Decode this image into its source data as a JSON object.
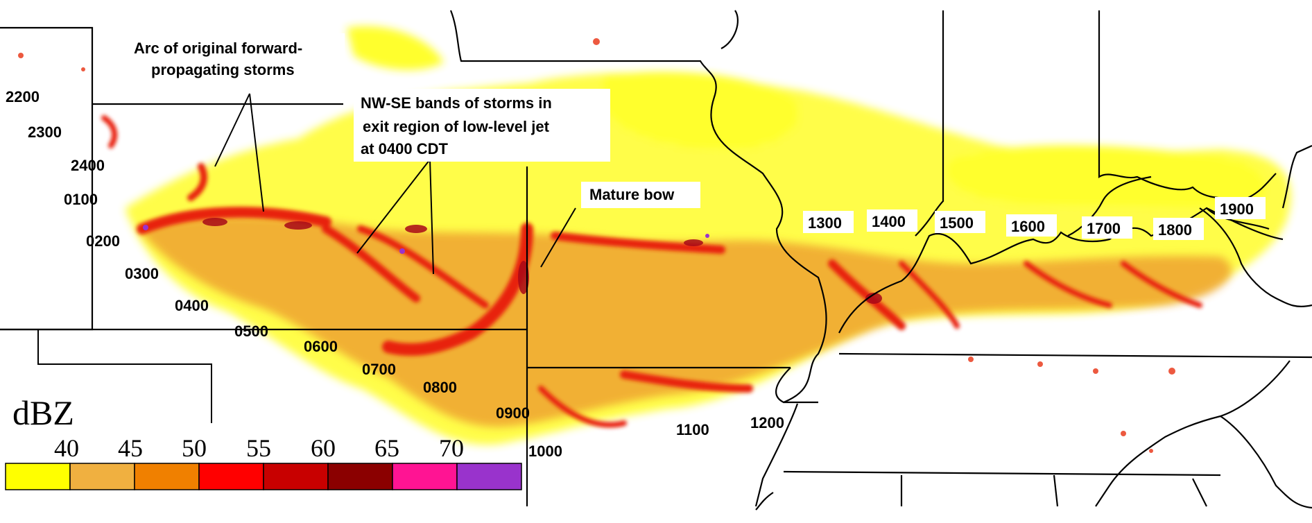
{
  "annotations": {
    "arc_line1": "Arc of original forward-",
    "arc_line2": "propagating storms",
    "nwse_line1": "NW-SE bands of storms in",
    "nwse_line2": "exit region of low-level jet",
    "nwse_line3": "at 0400 CDT",
    "mature_bow": "Mature bow"
  },
  "time_labels": [
    "2200",
    "2300",
    "2400",
    "0100",
    "0200",
    "0300",
    "0400",
    "0500",
    "0600",
    "0700",
    "0800",
    "0900",
    "1000",
    "1100",
    "1200",
    "1300",
    "1400",
    "1500",
    "1600",
    "1700",
    "1800",
    "1900"
  ],
  "legend": {
    "title": "dBZ",
    "ticks": [
      "40",
      "45",
      "50",
      "55",
      "60",
      "65",
      "70"
    ],
    "colors": [
      "#ffff00",
      "#f0b040",
      "#f08000",
      "#ff0000",
      "#c80000",
      "#8b0000",
      "#ff1493",
      "#9933cc"
    ]
  },
  "colors": {
    "light_echo": "#ffff40",
    "moderate_echo": "#f0a830",
    "strong_echo": "#e83010",
    "intense_echo": "#a80818"
  }
}
